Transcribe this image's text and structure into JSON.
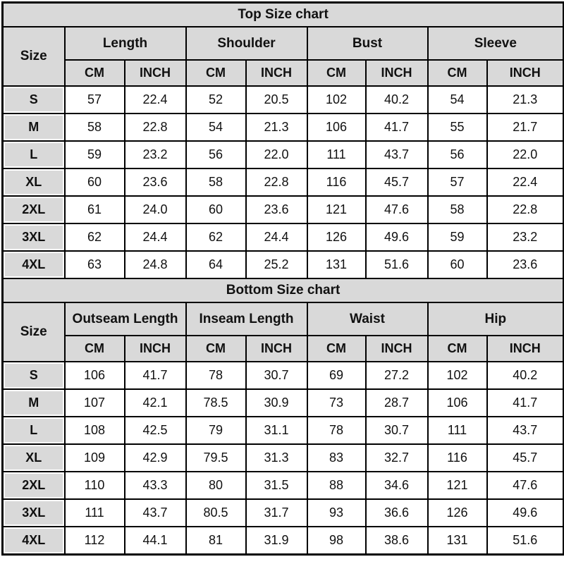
{
  "colors": {
    "header_bg": "#d9d9d9",
    "cell_bg": "#ffffff",
    "border": "#000000",
    "text": "#111111"
  },
  "units": {
    "cm": "CM",
    "inch": "INCH"
  },
  "top_chart": {
    "title": "Top Size chart",
    "size_header": "Size",
    "measurements": [
      "Length",
      "Shoulder",
      "Bust",
      "Sleeve"
    ],
    "rows": [
      {
        "size": "S",
        "values": [
          "57",
          "22.4",
          "52",
          "20.5",
          "102",
          "40.2",
          "54",
          "21.3"
        ]
      },
      {
        "size": "M",
        "values": [
          "58",
          "22.8",
          "54",
          "21.3",
          "106",
          "41.7",
          "55",
          "21.7"
        ]
      },
      {
        "size": "L",
        "values": [
          "59",
          "23.2",
          "56",
          "22.0",
          "111",
          "43.7",
          "56",
          "22.0"
        ]
      },
      {
        "size": "XL",
        "values": [
          "60",
          "23.6",
          "58",
          "22.8",
          "116",
          "45.7",
          "57",
          "22.4"
        ]
      },
      {
        "size": "2XL",
        "values": [
          "61",
          "24.0",
          "60",
          "23.6",
          "121",
          "47.6",
          "58",
          "22.8"
        ]
      },
      {
        "size": "3XL",
        "values": [
          "62",
          "24.4",
          "62",
          "24.4",
          "126",
          "49.6",
          "59",
          "23.2"
        ]
      },
      {
        "size": "4XL",
        "values": [
          "63",
          "24.8",
          "64",
          "25.2",
          "131",
          "51.6",
          "60",
          "23.6"
        ]
      }
    ]
  },
  "bottom_chart": {
    "title": "Bottom Size chart",
    "size_header": "Size",
    "measurements": [
      "Outseam Length",
      "Inseam Length",
      "Waist",
      "Hip"
    ],
    "rows": [
      {
        "size": "S",
        "values": [
          "106",
          "41.7",
          "78",
          "30.7",
          "69",
          "27.2",
          "102",
          "40.2"
        ]
      },
      {
        "size": "M",
        "values": [
          "107",
          "42.1",
          "78.5",
          "30.9",
          "73",
          "28.7",
          "106",
          "41.7"
        ]
      },
      {
        "size": "L",
        "values": [
          "108",
          "42.5",
          "79",
          "31.1",
          "78",
          "30.7",
          "111",
          "43.7"
        ]
      },
      {
        "size": "XL",
        "values": [
          "109",
          "42.9",
          "79.5",
          "31.3",
          "83",
          "32.7",
          "116",
          "45.7"
        ]
      },
      {
        "size": "2XL",
        "values": [
          "110",
          "43.3",
          "80",
          "31.5",
          "88",
          "34.6",
          "121",
          "47.6"
        ]
      },
      {
        "size": "3XL",
        "values": [
          "111",
          "43.7",
          "80.5",
          "31.7",
          "93",
          "36.6",
          "126",
          "49.6"
        ]
      },
      {
        "size": "4XL",
        "values": [
          "112",
          "44.1",
          "81",
          "31.9",
          "98",
          "38.6",
          "131",
          "51.6"
        ]
      }
    ]
  },
  "chart_data": [
    {
      "type": "table",
      "title": "Top Size chart",
      "columns": [
        "Size",
        "Length CM",
        "Length INCH",
        "Shoulder CM",
        "Shoulder INCH",
        "Bust CM",
        "Bust INCH",
        "Sleeve CM",
        "Sleeve INCH"
      ],
      "rows": [
        [
          "S",
          57,
          22.4,
          52,
          20.5,
          102,
          40.2,
          54,
          21.3
        ],
        [
          "M",
          58,
          22.8,
          54,
          21.3,
          106,
          41.7,
          55,
          21.7
        ],
        [
          "L",
          59,
          23.2,
          56,
          22.0,
          111,
          43.7,
          56,
          22.0
        ],
        [
          "XL",
          60,
          23.6,
          58,
          22.8,
          116,
          45.7,
          57,
          22.4
        ],
        [
          "2XL",
          61,
          24.0,
          60,
          23.6,
          121,
          47.6,
          58,
          22.8
        ],
        [
          "3XL",
          62,
          24.4,
          62,
          24.4,
          126,
          49.6,
          59,
          23.2
        ],
        [
          "4XL",
          63,
          24.8,
          64,
          25.2,
          131,
          51.6,
          60,
          23.6
        ]
      ]
    },
    {
      "type": "table",
      "title": "Bottom Size chart",
      "columns": [
        "Size",
        "Outseam Length CM",
        "Outseam Length INCH",
        "Inseam Length CM",
        "Inseam Length INCH",
        "Waist CM",
        "Waist INCH",
        "Hip CM",
        "Hip INCH"
      ],
      "rows": [
        [
          "S",
          106,
          41.7,
          78,
          30.7,
          69,
          27.2,
          102,
          40.2
        ],
        [
          "M",
          107,
          42.1,
          78.5,
          30.9,
          73,
          28.7,
          106,
          41.7
        ],
        [
          "L",
          108,
          42.5,
          79,
          31.1,
          78,
          30.7,
          111,
          43.7
        ],
        [
          "XL",
          109,
          42.9,
          79.5,
          31.3,
          83,
          32.7,
          116,
          45.7
        ],
        [
          "2XL",
          110,
          43.3,
          80,
          31.5,
          88,
          34.6,
          121,
          47.6
        ],
        [
          "3XL",
          111,
          43.7,
          80.5,
          31.7,
          93,
          36.6,
          126,
          49.6
        ],
        [
          "4XL",
          112,
          44.1,
          81,
          31.9,
          98,
          38.6,
          131,
          51.6
        ]
      ]
    }
  ]
}
